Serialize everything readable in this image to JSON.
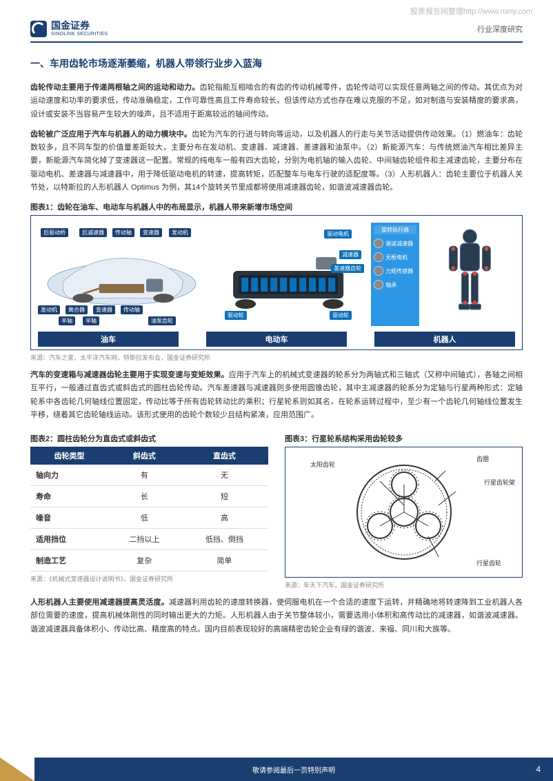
{
  "watermark": "股票报告网整理http://www.nxny.com",
  "header": {
    "logo_cn": "国金证券",
    "logo_en": "SINOLINK SECURITIES",
    "right": "行业深度研究"
  },
  "section_title": "一、车用齿轮市场逐渐萎缩，机器人带领行业步入蓝海",
  "para1": {
    "lead": "齿轮传动主要用于传递两根轴之间的运动和动力。",
    "rest": "齿轮指能互相啮合的有齿的传动机械零件，齿轮传动可以实现任意两轴之间的传动。其优点为对运动速度和功率的要求低，传动准确稳定，工作可靠性高且工件寿命较长。但该传动方式也存在难以克服的不足，如对制造与安装精度的要求高，设计或安装不当容易产生较大的噪声，且不适用于距离较远的轴间传动。"
  },
  "para2": {
    "lead": "齿轮被广泛应用于汽车与机器人的动力模块中。",
    "rest": "齿轮为汽车的行进与转向等运动，以及机器人的行走与关节活动提供传动效果。（1）燃油车：齿轮数较多，且不同车型的价值量差距较大，主要分布在发动机、变速器、减速器、差速器和油泵中。（2）新能源汽车：与传统燃油汽车相比差异主要，新能源汽车简化掉了变速器这一配置。常规的纯电车一般有四大齿轮，分别为电机轴的输入齿轮、中间轴齿轮组件和主减速齿轮，主要分布在驱动电机、差速器与减速器中，用于降低驱动电机的转速，提高转矩，匹配整车与电车行驶的适配度等。（3）人形机器人：齿轮主要位于机器人关节处，以特斯拉的人形机器人 Optimus 为例，其14个旋转关节里成都将使用减速器齿轮，如谐波减速器齿轮。"
  },
  "fig1": {
    "caption": "图表1：齿轮在油车、电动车与机器人中的布局显示，机器人带来新增市场空间",
    "oil_labels": [
      "后驱动桥",
      "后减速器",
      "传动轴",
      "变速器",
      "发动机",
      "发动机",
      "离合器",
      "变速器",
      "传动轴",
      "半轴",
      "半轴",
      "油泵齿轮"
    ],
    "ev_labels": [
      "驱动电机",
      "减速器",
      "差速器齿轮",
      "驱动轮",
      "驱动轮"
    ],
    "robot_side_title": "旋转执行器",
    "robot_components": [
      "谐波减速器",
      "无框电机",
      "力矩传感器",
      "轴承"
    ],
    "bottom_labels": [
      "油车",
      "电动车",
      "机器人"
    ],
    "source": "来源：汽车之家，太平洋汽车网，特斯拉发布会，国金证券研究所",
    "colors": {
      "brand": "#1a3e6f",
      "accent": "#2e97e5",
      "highlight": "#c89b4a"
    }
  },
  "para3": {
    "lead": "汽车的变速箱与减速器齿轮主要用于实现变速与变矩效果。",
    "rest": "应用于汽车上的机械式变速器的轮系分为两轴式和三轴式（又称中间轴式），各轴之间相互平行，一般通过直齿式或斜齿式的圆柱齿轮传动。汽车差速器与减速器则多使用圆锥齿轮，其中主减速器的轮系分为定轴与行星两种形式：定轴轮系中各齿轮几何轴线位置固定，传动比等于所有齿轮转动比的乘积；行星轮系则如其名，在轮系运转过程中，至少有一个齿轮几何轴线位置发生平移，绕着其它齿轮轴线运动。该形式使用的齿轮个数较少且结构紧凑，应用范围广。"
  },
  "fig2": {
    "caption": "图表2：圆柱齿轮分为直齿式或斜齿式",
    "table": {
      "headers": [
        "齿轮类型",
        "斜齿式",
        "直齿式"
      ],
      "rows": [
        [
          "轴向力",
          "有",
          "无"
        ],
        [
          "寿命",
          "长",
          "短"
        ],
        [
          "噪音",
          "低",
          "高"
        ],
        [
          "适用挡位",
          "二挡以上",
          "低挡、倒挡"
        ],
        [
          "制造工艺",
          "复杂",
          "简单"
        ]
      ]
    },
    "source": "来源：《机械式变速器设计说明书》，国金证券研究所"
  },
  "fig3": {
    "caption": "图表3：行星轮系结构采用齿轮较多",
    "labels": {
      "sun": "太阳齿轮",
      "ring": "齿圈",
      "carrier": "行星齿轮架",
      "planet": "行星齿轮"
    },
    "source": "来源：车天下汽车，国金证券研究所"
  },
  "para4": {
    "lead": "人形机器人主要使用减速器提高灵活度。",
    "rest": "减速器利用齿轮的速度转换器，使伺服电机在一个合适的速度下运转，并精确地将转速降到工业机器人各部位需要的速度，提高机械体刚性的同时输出更大的力矩。人形机器人由于关节整体较小，需要选用小体积和高传动比的减速器，如谐波减速器。谐波减速器具备体积小、传动比高、精度高的特点。国内目前表现较好的高端精密齿轮企业有绿的谐波、来福、同川和大族等。"
  },
  "footer": {
    "text": "敬请参阅最后一页特别声明",
    "page": "4"
  }
}
